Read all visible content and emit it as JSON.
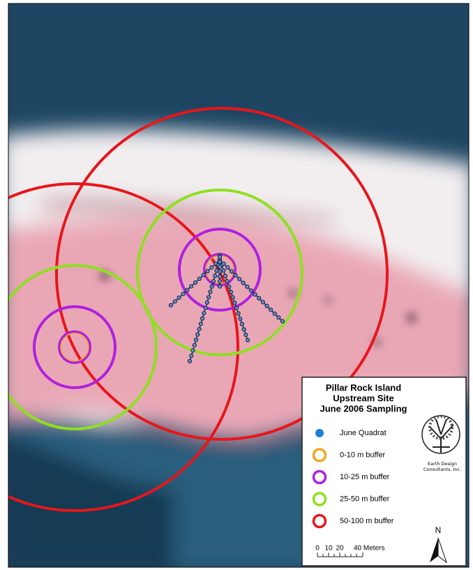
{
  "legend": {
    "title": [
      "Pillar Rock Island",
      "Upstream Site",
      "June 2006 Sampling"
    ],
    "items": [
      {
        "label": "June Quadrat",
        "color": "#1f7fd8"
      },
      {
        "label": "0-10 m buffer",
        "color": "#f5a623"
      },
      {
        "label": "10-25 m buffer",
        "color": "#b020e0"
      },
      {
        "label": "25-50 m buffer",
        "color": "#8ee020"
      },
      {
        "label": "50-100 m buffer",
        "color": "#e8161a"
      }
    ]
  },
  "logo": {
    "lines": [
      "Earth Design",
      "Consultants, Inc."
    ]
  },
  "scale_bar": {
    "labels": [
      "0",
      "10",
      "20",
      "40 Meters"
    ]
  },
  "north_arrow": {
    "label": "N"
  }
}
